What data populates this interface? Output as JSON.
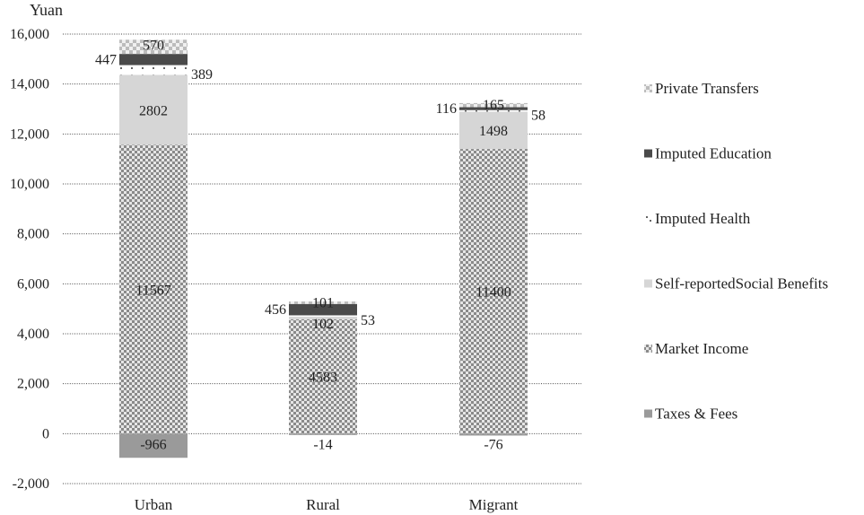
{
  "chart_data": {
    "type": "bar",
    "stacked": true,
    "ylabel": "Yuan",
    "ylim": [
      -2000,
      16000
    ],
    "yticks": [
      "-2,000",
      "0",
      "2,000",
      "4,000",
      "6,000",
      "8,000",
      "10,000",
      "12,000",
      "14,000",
      "16,000"
    ],
    "ytick_values": [
      -2000,
      0,
      2000,
      4000,
      6000,
      8000,
      10000,
      12000,
      14000,
      16000
    ],
    "grid": "horizontal dotted",
    "legend_position": "right",
    "categories": [
      "Urban",
      "Rural",
      "Migrant"
    ],
    "series": [
      {
        "name": "Taxes & Fees",
        "values": [
          -966,
          -14,
          -76
        ],
        "labels": [
          "-966",
          "-14",
          "-76"
        ],
        "color": "#9a9a9a",
        "pattern": "solid"
      },
      {
        "name": "Market Income",
        "values": [
          11567,
          4583,
          11400
        ],
        "labels": [
          "11567",
          "4583",
          "11400"
        ],
        "color": "#bdbdbd",
        "pattern": "checker"
      },
      {
        "name": "Self-reportedSocial Benefits",
        "values": [
          2802,
          102,
          1498
        ],
        "labels": [
          "2802",
          "102",
          "1498"
        ],
        "color": "#d6d6d6",
        "pattern": "solid"
      },
      {
        "name": "Imputed Health",
        "values": [
          389,
          53,
          58
        ],
        "labels": [
          "389",
          "53",
          "58"
        ],
        "color": "#ffffff",
        "pattern": "dots"
      },
      {
        "name": "Imputed Education",
        "values": [
          447,
          456,
          116
        ],
        "labels": [
          "447",
          "456",
          "116"
        ],
        "color": "#4a4a4a",
        "pattern": "solid"
      },
      {
        "name": "Private Transfers",
        "values": [
          570,
          101,
          165
        ],
        "labels": [
          "570",
          "101",
          "165"
        ],
        "color": "#cfcfcf",
        "pattern": "fine-checker"
      }
    ],
    "legend_order": [
      "Private Transfers",
      "Imputed Education",
      "Imputed Health",
      "Self-reportedSocial Benefits",
      "Market Income",
      "Taxes & Fees"
    ]
  }
}
